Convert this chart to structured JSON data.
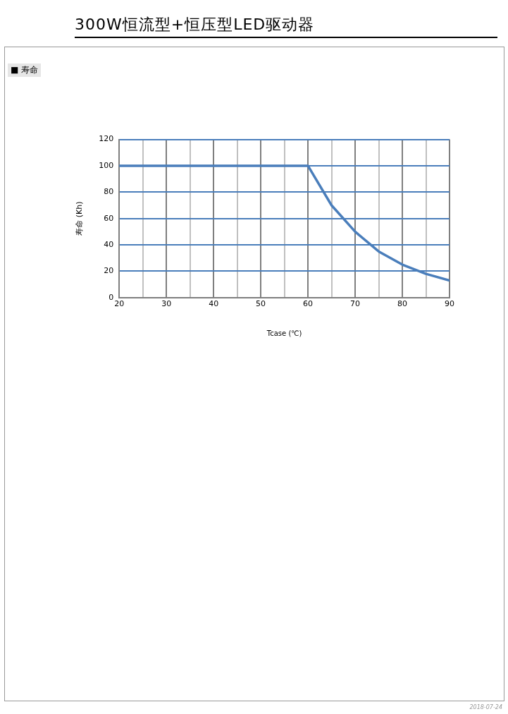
{
  "chart_data": {
    "type": "line",
    "title": "300W恒流型+恒压型LED驱动器",
    "subtitle": "■ 寿命",
    "xlabel": "Tcase (℃)",
    "ylabel": "寿命 (Kh)",
    "x": [
      20,
      25,
      30,
      35,
      40,
      45,
      50,
      55,
      60,
      65,
      70,
      75,
      80,
      85,
      90
    ],
    "series": [
      {
        "color": "#4a7ebb",
        "values": [
          100,
          100,
          100,
          100,
          100,
          100,
          100,
          100,
          100,
          70,
          50,
          35,
          25,
          18,
          13
        ]
      }
    ],
    "xlim": [
      20,
      90
    ],
    "xticks": [
      20,
      {
        "value": 25,
        "label": null
      },
      30,
      {
        "value": 35,
        "label": null
      },
      40,
      {
        "value": 45,
        "label": null
      },
      50,
      {
        "value": 55,
        "label": null
      },
      60,
      {
        "value": 65,
        "label": null
      },
      70,
      {
        "value": 75,
        "label": null
      },
      80,
      {
        "value": 85,
        "label": null
      },
      90
    ],
    "ylim": [
      0,
      120
    ],
    "yticks": [
      0,
      20,
      40,
      60,
      80,
      100,
      120
    ],
    "grid": true,
    "legend": false,
    "marker": "none",
    "line_style": "solid",
    "annotations": [
      "2018-07-24"
    ]
  }
}
